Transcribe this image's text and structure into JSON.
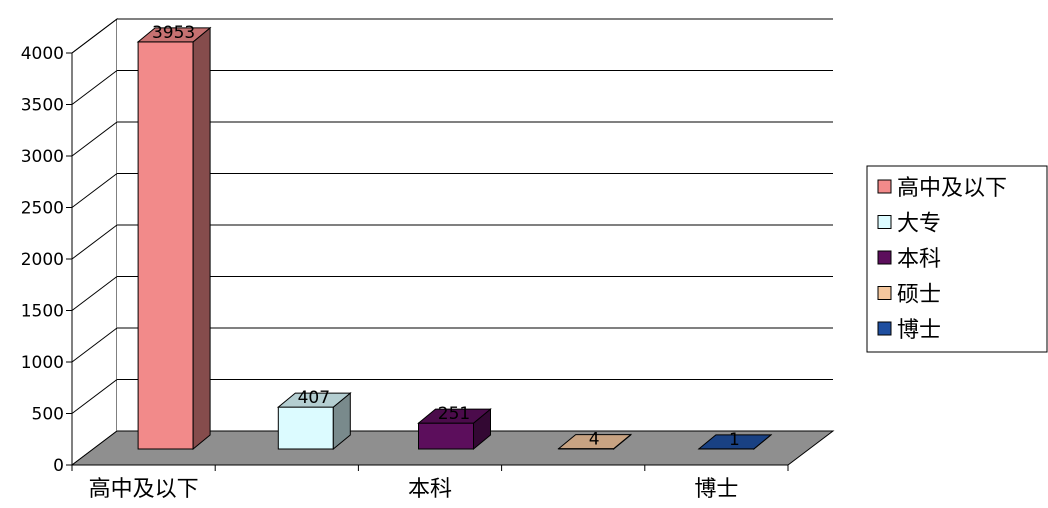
{
  "chart_data": {
    "type": "bar",
    "categories": [
      "高中及以下",
      "大专",
      "本科",
      "硕士",
      "博士"
    ],
    "x_tick_labels": [
      "高中及以下",
      "本科",
      "博士"
    ],
    "values": [
      3953,
      407,
      251,
      4,
      1
    ],
    "value_labels": [
      "3953",
      "407",
      "251",
      "4",
      "1"
    ],
    "colors": [
      "#f28a8a",
      "#dcfbff",
      "#5c0e5c",
      "#f4c79e",
      "#1f4fa0"
    ],
    "title": "",
    "xlabel": "",
    "ylabel": "",
    "ylim": [
      0,
      4000
    ],
    "yticks": [
      "0",
      "500",
      "1000",
      "1500",
      "2000",
      "2500",
      "3000",
      "3500",
      "4000"
    ],
    "grid": true,
    "style": "3d-column",
    "legend": {
      "position": "right",
      "entries": [
        "高中及以下",
        "大专",
        "本科",
        "硕士",
        "博士"
      ]
    }
  }
}
